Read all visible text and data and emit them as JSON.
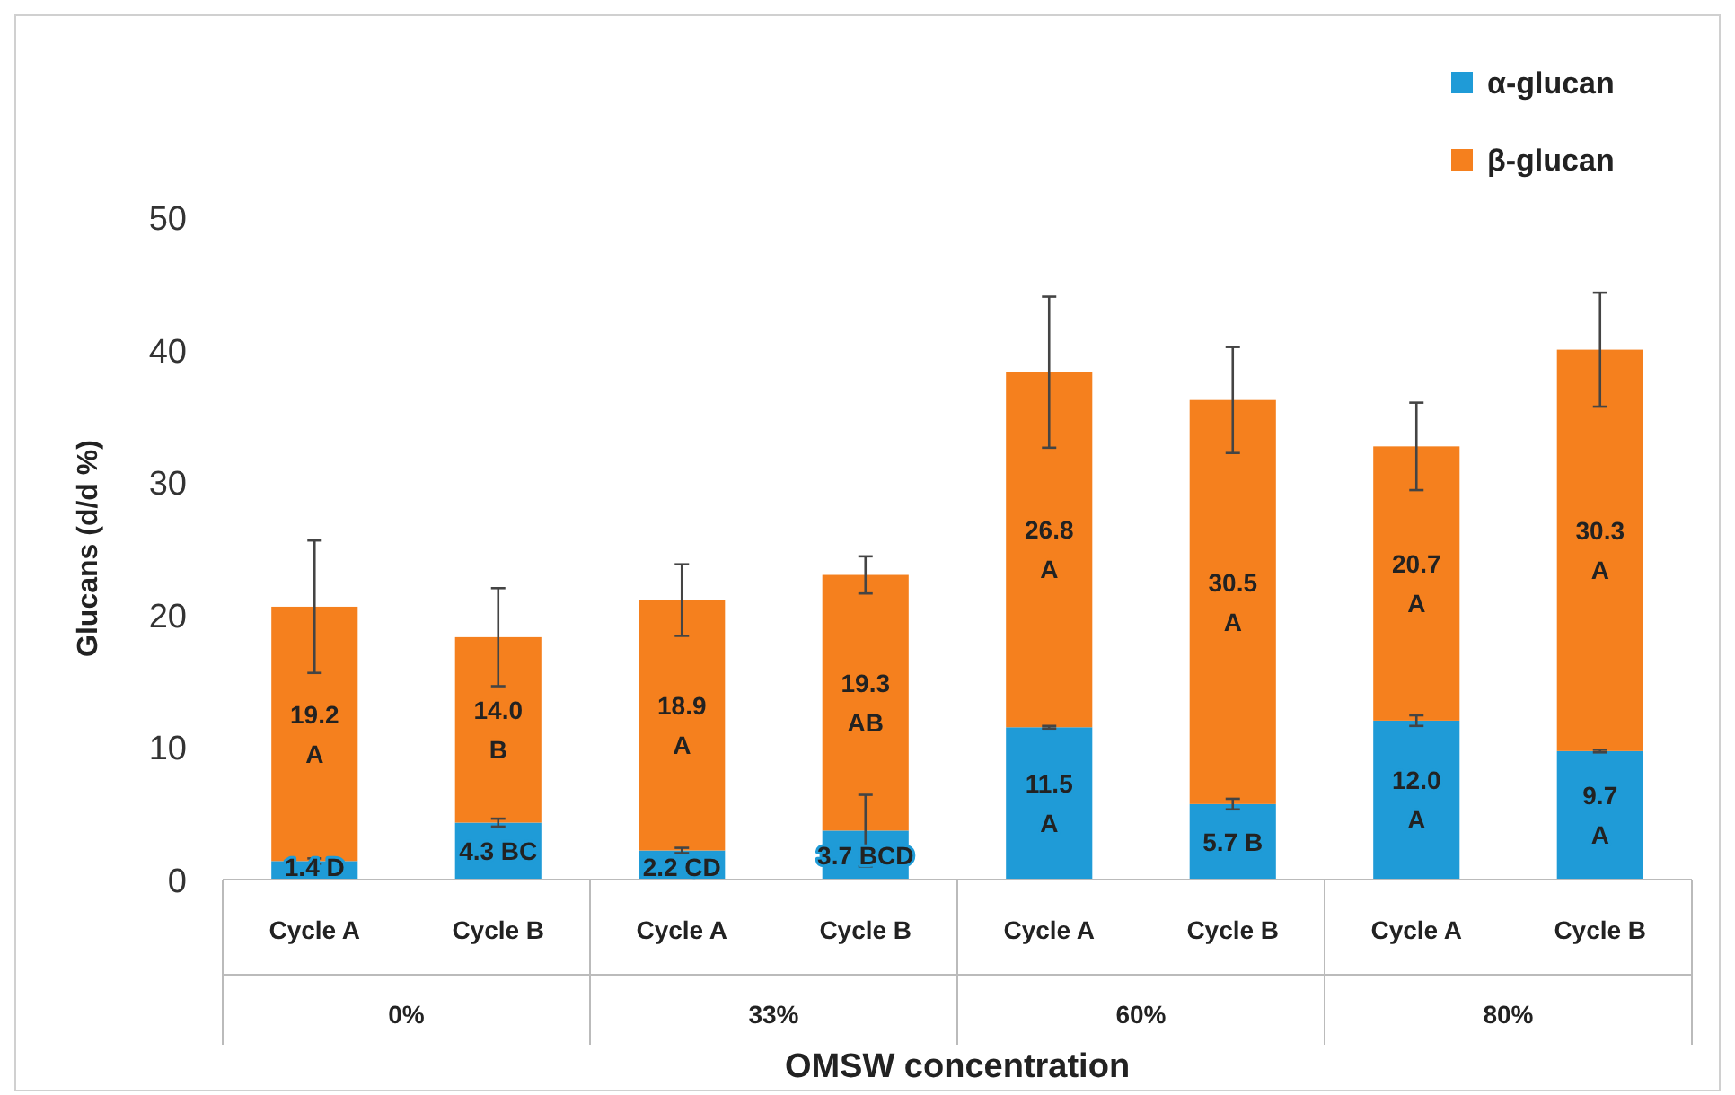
{
  "chart_data": {
    "type": "bar",
    "stacked": true,
    "xlabel": "OMSW concentration",
    "ylabel": "Glucans (d/d %)",
    "categories": [
      "Cycle A",
      "Cycle B",
      "Cycle A",
      "Cycle B",
      "Cycle A",
      "Cycle B",
      "Cycle A",
      "Cycle B"
    ],
    "annotations": [
      "0%",
      "33%",
      "60%",
      "80%"
    ],
    "ylim": [
      0,
      50
    ],
    "yticks": [
      0,
      10,
      20,
      30,
      40,
      50
    ],
    "grid": false,
    "legend": "top right",
    "series": [
      {
        "name": "α-glucan",
        "color": "#1f9bd7",
        "values": [
          1.4,
          4.3,
          2.2,
          3.7,
          11.5,
          5.7,
          12.0,
          9.7
        ],
        "errors": [
          0.2,
          0.3,
          0.2,
          2.7,
          0.1,
          0.4,
          0.4,
          0.1
        ],
        "value_labels": [
          "1.4 D",
          "4.3 BC",
          "2.2 CD",
          "3.7 BCD",
          "11.5\nA",
          "5.7 B",
          "12.0\nA",
          "9.7\nA"
        ]
      },
      {
        "name": "β-glucan",
        "color": "#f5801e",
        "values": [
          19.2,
          14.0,
          18.9,
          19.3,
          26.8,
          30.5,
          20.7,
          30.3
        ],
        "errors": [
          5.0,
          3.7,
          2.7,
          1.4,
          5.7,
          4.0,
          3.3,
          4.3
        ],
        "value_labels": [
          "19.2\nA",
          "14.0\nB",
          "18.9\nA",
          "19.3\nAB",
          "26.8\nA",
          "30.5\nA",
          "20.7\nA",
          "30.3\nA"
        ]
      }
    ]
  }
}
